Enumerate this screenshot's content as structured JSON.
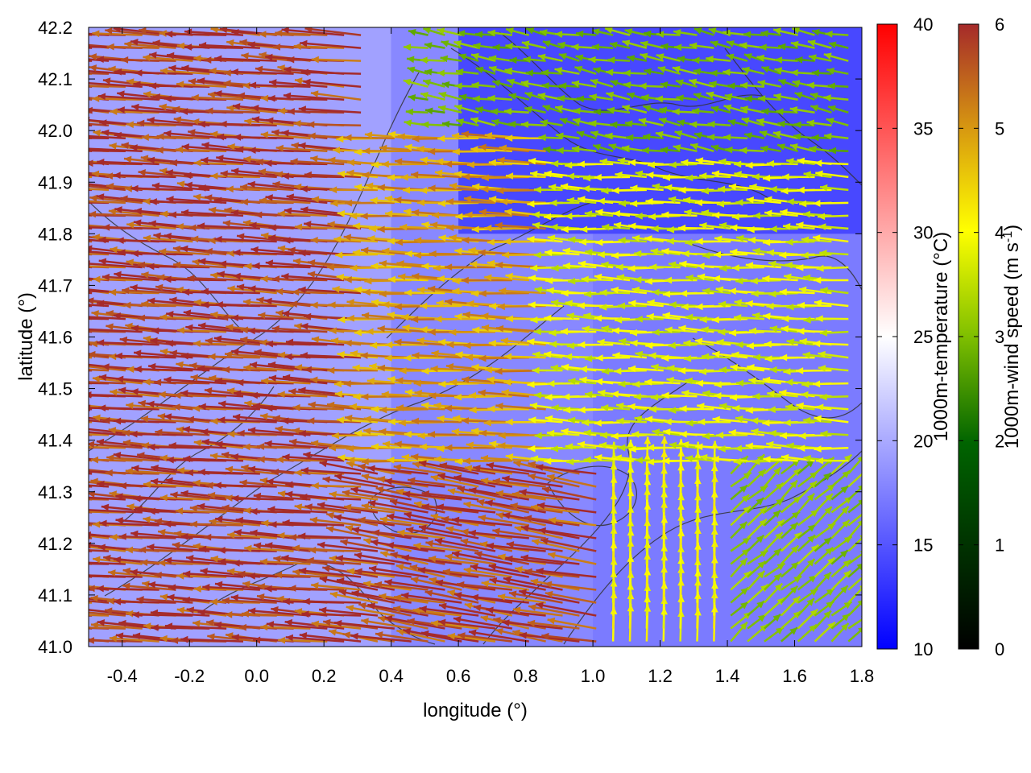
{
  "chart_data": {
    "type": "heatmap",
    "xlabel": "longitude (°)",
    "ylabel": "latitude (°)",
    "xlim": [
      -0.5,
      1.8
    ],
    "ylim": [
      41.0,
      42.2
    ],
    "x_ticks": [
      -0.4,
      -0.2,
      0.0,
      0.2,
      0.4,
      0.6,
      0.8,
      1.0,
      1.2,
      1.4,
      1.6,
      1.8
    ],
    "x_tick_labels": [
      "-0.4",
      "-0.2",
      "0.0",
      "0.2",
      "0.4",
      "0.6",
      "0.8",
      "1.0",
      "1.2",
      "1.4",
      "1.6",
      "1.8"
    ],
    "y_ticks": [
      41.0,
      41.1,
      41.2,
      41.3,
      41.4,
      41.5,
      41.6,
      41.7,
      41.8,
      41.9,
      42.0,
      42.1,
      42.2
    ],
    "y_tick_labels": [
      "41.0",
      "41.1",
      "41.2",
      "41.3",
      "41.4",
      "41.5",
      "41.6",
      "41.7",
      "41.8",
      "41.9",
      "42.0",
      "42.1",
      "42.2"
    ],
    "temperature_colorbar": {
      "label": "1000m-temperature (°C)",
      "range": [
        10,
        40
      ],
      "ticks": [
        10,
        15,
        20,
        25,
        30,
        35,
        40
      ],
      "tick_labels": [
        "10",
        "15",
        "20",
        "25",
        "30",
        "35",
        "40"
      ],
      "colors": [
        "#0000ff",
        "#ffffff",
        "#ff0000"
      ]
    },
    "wind_colorbar": {
      "label_main": "1000m-wind speed (m s",
      "label_sup": "-1",
      "label_end": ")",
      "range": [
        0,
        6
      ],
      "ticks": [
        0,
        1,
        2,
        3,
        4,
        5,
        6
      ],
      "tick_labels": [
        "0",
        "1",
        "2",
        "3",
        "4",
        "5",
        "6"
      ],
      "colors": [
        "#000000",
        "#006400",
        "#7fbf00",
        "#ffff00",
        "#d89a10",
        "#a52a2a"
      ]
    },
    "temperature_field": [
      {
        "x": [
          -0.5,
          0.4
        ],
        "y": [
          41.0,
          42.2
        ],
        "temp": 20
      },
      {
        "x": [
          0.4,
          1.0
        ],
        "y": [
          41.0,
          42.2
        ],
        "temp": 18
      },
      {
        "x": [
          1.0,
          1.8
        ],
        "y": [
          41.0,
          41.8
        ],
        "temp": 17
      },
      {
        "x": [
          0.6,
          1.8
        ],
        "y": [
          41.8,
          42.2
        ],
        "temp": 13
      }
    ],
    "wind_regions": [
      {
        "x": [
          -0.5,
          0.35
        ],
        "y": [
          41.0,
          42.2
        ],
        "u": -5.8,
        "v": 0.4,
        "speed": 5.9
      },
      {
        "x": [
          0.35,
          0.9
        ],
        "y": [
          41.35,
          42.0
        ],
        "u": -4.7,
        "v": 0.2,
        "speed": 4.8
      },
      {
        "x": [
          0.9,
          1.8
        ],
        "y": [
          41.35,
          41.95
        ],
        "u": -3.3,
        "v": 0.15,
        "speed": 3.4
      },
      {
        "x": [
          0.5,
          1.8
        ],
        "y": [
          41.95,
          42.2
        ],
        "u": -2.3,
        "v": 0.4,
        "speed": 2.4
      },
      {
        "x": [
          0.35,
          1.05
        ],
        "y": [
          41.0,
          41.35
        ],
        "u": -5.6,
        "v": 0.9,
        "speed": 5.7
      },
      {
        "x": [
          1.05,
          1.4
        ],
        "y": [
          41.0,
          41.35
        ],
        "u": 0.1,
        "v": 3.6,
        "speed": 3.6
      },
      {
        "x": [
          1.4,
          1.8
        ],
        "y": [
          41.0,
          41.35
        ],
        "u": 1.9,
        "v": 1.7,
        "speed": 2.6
      }
    ]
  }
}
